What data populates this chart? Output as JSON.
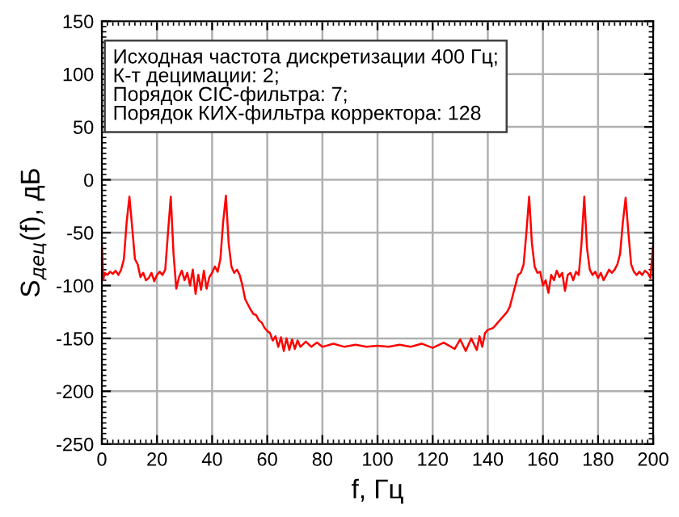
{
  "chart_data": {
    "type": "line",
    "xlabel": "f, Гц",
    "ylabel": "S$_{дец}$(f), дБ",
    "annotations": [
      "Исходная частота дискретизации 400 Гц;",
      "К-т децимации: 2;",
      "Порядок CIC-фильтра: 7;",
      "Порядок КИХ-фильтра корректора: 128"
    ],
    "series": [
      {
        "color": "#ff0000",
        "x": [
          0,
          0.5,
          1,
          2,
          3,
          4,
          5,
          6,
          7,
          8,
          9,
          10,
          11,
          12,
          13,
          14,
          15,
          16,
          17,
          18,
          19,
          20,
          21,
          22,
          23,
          24,
          25,
          26,
          27,
          28,
          29,
          30,
          31,
          32,
          33,
          34,
          35,
          36,
          37,
          38,
          39,
          40,
          41,
          42,
          43,
          44,
          45,
          46,
          47,
          48,
          49,
          50,
          51,
          52,
          53,
          54,
          55,
          56,
          57,
          58,
          59,
          60,
          61,
          62,
          63,
          64,
          65,
          66,
          67,
          68,
          69,
          70,
          71,
          72,
          74,
          76,
          78,
          80,
          84,
          88,
          92,
          96,
          100,
          104,
          108,
          112,
          116,
          120,
          124,
          128,
          130,
          132,
          134,
          136,
          137,
          138,
          139,
          140,
          142,
          144,
          145,
          146,
          147,
          148,
          149,
          150,
          151,
          152,
          153,
          154,
          155,
          156,
          157,
          158,
          159,
          160,
          161,
          162,
          163,
          164,
          165,
          166,
          167,
          168,
          169,
          170,
          171,
          172,
          173,
          174,
          175,
          176,
          177,
          178,
          179,
          180,
          181,
          182,
          183,
          184,
          185,
          186,
          187,
          188,
          189,
          190,
          191,
          192,
          193,
          194,
          195,
          196,
          197,
          198,
          199,
          200
        ],
        "values": [
          -60,
          -95,
          -88,
          -90,
          -87,
          -89,
          -86,
          -90,
          -85,
          -75,
          -40,
          -16,
          -45,
          -75,
          -80,
          -92,
          -88,
          -95,
          -93,
          -88,
          -96,
          -90,
          -87,
          -90,
          -85,
          -50,
          -16,
          -70,
          -103,
          -92,
          -86,
          -95,
          -88,
          -100,
          -85,
          -108,
          -90,
          -104,
          -86,
          -103,
          -92,
          -88,
          -82,
          -87,
          -75,
          -40,
          -15,
          -60,
          -82,
          -88,
          -85,
          -90,
          -100,
          -113,
          -118,
          -123,
          -127,
          -128,
          -133,
          -135,
          -140,
          -143,
          -145,
          -152,
          -148,
          -158,
          -149,
          -162,
          -150,
          -161,
          -151,
          -160,
          -152,
          -158,
          -153,
          -158,
          -154,
          -158,
          -155,
          -158,
          -156,
          -158,
          -157,
          -158,
          -156,
          -158,
          -155,
          -159,
          -154,
          -160,
          -151,
          -162,
          -150,
          -161,
          -148,
          -158,
          -145,
          -142,
          -140,
          -134,
          -131,
          -128,
          -125,
          -120,
          -110,
          -100,
          -90,
          -88,
          -80,
          -50,
          -16,
          -60,
          -82,
          -88,
          -87,
          -100,
          -95,
          -107,
          -90,
          -95,
          -86,
          -92,
          -88,
          -105,
          -90,
          -88,
          -95,
          -87,
          -90,
          -60,
          -16,
          -65,
          -85,
          -90,
          -87,
          -93,
          -88,
          -95,
          -90,
          -85,
          -88,
          -85,
          -80,
          -70,
          -40,
          -17,
          -50,
          -80,
          -87,
          -90,
          -87,
          -90,
          -86,
          -88,
          -93,
          -60
        ]
      }
    ],
    "xlim": [
      0,
      200
    ],
    "ylim": [
      -250,
      150
    ],
    "xticks": [
      0,
      20,
      40,
      60,
      80,
      100,
      120,
      140,
      160,
      180,
      200
    ],
    "yticks": [
      -250,
      -200,
      -150,
      -100,
      -50,
      0,
      50,
      100,
      150
    ],
    "grid": true
  }
}
